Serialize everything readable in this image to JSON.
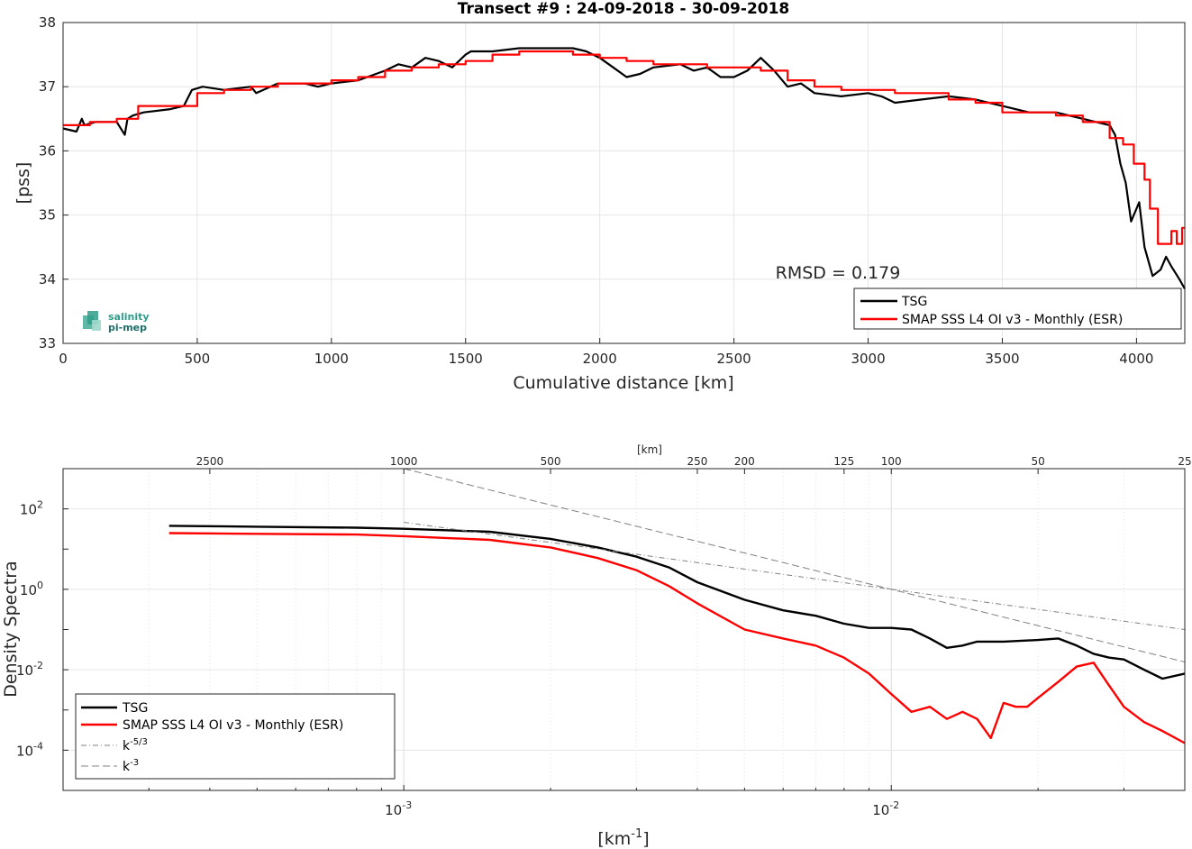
{
  "chart_data": [
    {
      "type": "line",
      "title": "Transect #9 : 24-09-2018 - 30-09-2018",
      "xlabel": "Cumulative distance [km]",
      "ylabel": "[pss]",
      "xlim": [
        0,
        4180
      ],
      "ylim": [
        33,
        38
      ],
      "xticks": [
        "0",
        "500",
        "1000",
        "1500",
        "2000",
        "2500",
        "3000",
        "3500",
        "4000"
      ],
      "yticks": [
        "33",
        "34",
        "35",
        "36",
        "37",
        "38"
      ],
      "grid": true,
      "legend_position": "bottom-right",
      "annotation": "RMSD = 0.179",
      "logo": {
        "line1": "salinity",
        "line2": "pi-mep"
      },
      "series": [
        {
          "name": "TSG",
          "color": "#000000",
          "x": [
            0,
            50,
            70,
            80,
            120,
            200,
            230,
            240,
            260,
            300,
            400,
            450,
            480,
            520,
            600,
            700,
            720,
            800,
            900,
            950,
            1000,
            1100,
            1200,
            1250,
            1300,
            1350,
            1400,
            1450,
            1500,
            1520,
            1600,
            1700,
            1800,
            1900,
            1950,
            2000,
            2050,
            2100,
            2150,
            2200,
            2300,
            2350,
            2400,
            2450,
            2500,
            2550,
            2600,
            2650,
            2700,
            2750,
            2800,
            2900,
            3000,
            3050,
            3100,
            3200,
            3300,
            3400,
            3500,
            3600,
            3700,
            3800,
            3850,
            3900,
            3920,
            3940,
            3960,
            3980,
            4000,
            4010,
            4030,
            4060,
            4090,
            4110,
            4130,
            4160,
            4180
          ],
          "y": [
            36.35,
            36.3,
            36.5,
            36.4,
            36.45,
            36.45,
            36.25,
            36.5,
            36.55,
            36.6,
            36.65,
            36.7,
            36.95,
            37.0,
            36.95,
            37.0,
            36.9,
            37.05,
            37.05,
            37.0,
            37.05,
            37.1,
            37.25,
            37.35,
            37.3,
            37.45,
            37.4,
            37.3,
            37.5,
            37.55,
            37.55,
            37.6,
            37.6,
            37.6,
            37.55,
            37.45,
            37.3,
            37.15,
            37.2,
            37.3,
            37.35,
            37.25,
            37.3,
            37.15,
            37.15,
            37.25,
            37.45,
            37.25,
            37.0,
            37.05,
            36.9,
            36.85,
            36.9,
            36.85,
            36.75,
            36.8,
            36.85,
            36.8,
            36.7,
            36.6,
            36.6,
            36.5,
            36.45,
            36.4,
            36.25,
            35.8,
            35.5,
            34.9,
            35.1,
            35.2,
            34.5,
            34.05,
            34.15,
            34.35,
            34.2,
            34.0,
            33.85
          ]
        },
        {
          "name": "SMAP SSS L4 OI v3 - Monthly (ESR)",
          "color": "#ff0000",
          "x": [
            0,
            100,
            200,
            280,
            400,
            500,
            600,
            700,
            800,
            900,
            1000,
            1100,
            1200,
            1300,
            1400,
            1500,
            1600,
            1700,
            1800,
            1900,
            1950,
            2000,
            2100,
            2200,
            2300,
            2400,
            2500,
            2600,
            2700,
            2800,
            2900,
            3000,
            3100,
            3200,
            3300,
            3400,
            3500,
            3600,
            3700,
            3800,
            3900,
            3950,
            3990,
            4030,
            4050,
            4080,
            4100,
            4130,
            4150,
            4170,
            4180
          ],
          "y": [
            36.4,
            36.45,
            36.5,
            36.7,
            36.7,
            36.9,
            36.95,
            37.0,
            37.05,
            37.05,
            37.1,
            37.15,
            37.25,
            37.3,
            37.35,
            37.4,
            37.5,
            37.55,
            37.55,
            37.5,
            37.5,
            37.45,
            37.4,
            37.35,
            37.35,
            37.3,
            37.3,
            37.25,
            37.1,
            37.0,
            36.95,
            36.95,
            36.9,
            36.9,
            36.8,
            36.75,
            36.6,
            36.6,
            36.55,
            36.45,
            36.2,
            36.1,
            35.8,
            35.55,
            35.1,
            34.55,
            34.55,
            34.75,
            34.55,
            34.8,
            34.8
          ]
        }
      ]
    },
    {
      "type": "line",
      "title": "",
      "xlabel": "[km-1]",
      "ylabel": "Density Spectra",
      "xscale": "log",
      "yscale": "log",
      "xlim": [
        0.0002,
        0.04
      ],
      "ylim": [
        1e-05,
        1000
      ],
      "xticks": [
        "10-3",
        "10-2"
      ],
      "yticks": [
        "10-4",
        "10-2",
        "100",
        "102"
      ],
      "top_axis_label": "[km]",
      "top_ticks": [
        {
          "km": 2500,
          "label": "2500"
        },
        {
          "km": 1000,
          "label": "1000"
        },
        {
          "km": 500,
          "label": "500"
        },
        {
          "km": 250,
          "label": "250"
        },
        {
          "km": 200,
          "label": "200"
        },
        {
          "km": 125,
          "label": "125"
        },
        {
          "km": 100,
          "label": "100"
        },
        {
          "km": 50,
          "label": "50"
        },
        {
          "km": 25,
          "label": "25"
        }
      ],
      "grid": true,
      "legend_position": "bottom-left",
      "series": [
        {
          "name": "TSG",
          "color": "#000000",
          "style": "solid",
          "x": [
            0.00033,
            0.0005,
            0.0008,
            0.001,
            0.0015,
            0.002,
            0.0025,
            0.003,
            0.0035,
            0.004,
            0.005,
            0.006,
            0.007,
            0.008,
            0.009,
            0.01,
            0.011,
            0.012,
            0.013,
            0.014,
            0.015,
            0.017,
            0.02,
            0.022,
            0.024,
            0.026,
            0.028,
            0.03,
            0.033,
            0.036,
            0.04
          ],
          "y": [
            38,
            36,
            34,
            32,
            27,
            18,
            11,
            6.5,
            3.5,
            1.5,
            0.55,
            0.3,
            0.22,
            0.14,
            0.11,
            0.11,
            0.1,
            0.06,
            0.035,
            0.04,
            0.05,
            0.05,
            0.055,
            0.06,
            0.04,
            0.025,
            0.02,
            0.018,
            0.01,
            0.006,
            0.008
          ]
        },
        {
          "name": "SMAP SSS L4 OI v3 - Monthly (ESR)",
          "color": "#ff0000",
          "style": "solid",
          "x": [
            0.00033,
            0.0005,
            0.0008,
            0.001,
            0.0015,
            0.002,
            0.0025,
            0.003,
            0.0035,
            0.004,
            0.005,
            0.006,
            0.007,
            0.008,
            0.009,
            0.01,
            0.011,
            0.012,
            0.013,
            0.014,
            0.015,
            0.016,
            0.017,
            0.018,
            0.019,
            0.02,
            0.022,
            0.024,
            0.026,
            0.028,
            0.03,
            0.033,
            0.036,
            0.04
          ],
          "y": [
            25,
            24,
            23,
            21,
            17,
            11,
            6,
            3,
            1.2,
            0.45,
            0.1,
            0.06,
            0.04,
            0.02,
            0.008,
            0.0025,
            0.0009,
            0.0012,
            0.0006,
            0.0009,
            0.0006,
            0.0002,
            0.0015,
            0.0012,
            0.0012,
            0.002,
            0.005,
            0.012,
            0.015,
            0.004,
            0.0012,
            0.0005,
            0.0003,
            0.00015
          ]
        },
        {
          "name": "k-5/3",
          "color": "#808080",
          "style": "dashdot",
          "x": [
            0.001,
            0.04
          ],
          "y": [
            46.4,
            0.1
          ]
        },
        {
          "name": "k-3",
          "color": "#808080",
          "style": "dashed",
          "x": [
            0.001,
            0.04
          ],
          "y": [
            1000,
            0.0156
          ]
        }
      ]
    }
  ]
}
